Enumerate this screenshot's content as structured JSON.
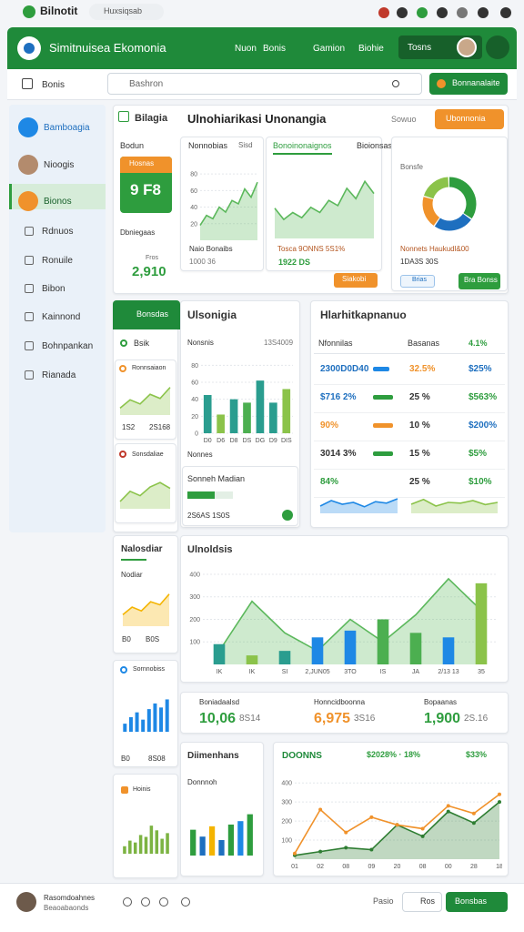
{
  "status_bar": {
    "app": "Bilnotit",
    "tab": "Huxsiqsab"
  },
  "header": {
    "title": "Simitnuisea Ekomonia",
    "nav": [
      "Nuon",
      "Bonis",
      "Gamion",
      "Biohie"
    ],
    "button": "Tosns"
  },
  "toolbar": {
    "home": "Bonis",
    "search": "Bashron",
    "action": "Bonnanalaite"
  },
  "sidebar": [
    "Bamboagia",
    "Nioogis",
    "Bionos",
    "Rdnuos",
    "Ronuile",
    "Bibon",
    "Kainnond",
    "Bohnpankan",
    "Rianada"
  ],
  "overview": {
    "tab": "Bilagia",
    "title": "Ulnohiarikasi Unonangia",
    "filter": "Sowuo",
    "button": "Ubonnonia",
    "kpi": {
      "label": "Bodun",
      "badge": "Hosnas",
      "big": "9 F8",
      "caption": "Dbniegaas",
      "note": "Fros",
      "value": "2,910"
    },
    "card1": {
      "title": "Nonnobias",
      "tag": "Sisd",
      "legend": "Naio Bonaibs",
      "foot": "1000 36"
    },
    "card2": {
      "tab": "Bonoinonaignos",
      "tab2": "Bioionsas",
      "legend": "Tosca 9ONNS 5S1%",
      "foot": "1922 DS",
      "button": "Siakobi"
    },
    "card3": {
      "label": "Bonsfe",
      "legend": "Nonnets Haukudl&00",
      "foot": "1DA3S 30S",
      "tag": "Brias",
      "button": "Bra Bonss"
    }
  },
  "side_panel": {
    "header": "Bonsdas",
    "item": "Bsik",
    "card1": {
      "title": "Ronnsaiaon",
      "left": "1S2",
      "right": "2S168"
    },
    "card2": {
      "title": "Sonsdaliae"
    }
  },
  "breakdown": {
    "title": "Ulsonigia",
    "label": "Nonsnis",
    "value": "13S4009",
    "foot": "Nonnes",
    "sub": "Sonneh Madian",
    "progress": 60,
    "sub_foot": "2S6AS 1S0S"
  },
  "table": {
    "title": "Hlarhitkapnanuo",
    "columns": [
      "Nfonnilas",
      "Basanas",
      "4.1%"
    ],
    "rows": [
      {
        "name": "2300D0D40",
        "color": "#1e6fbf",
        "bar": 45,
        "bar_color": "#1e88e5",
        "change": "32.5%",
        "change_color": "#f0922b",
        "share": "$25%",
        "share_color": "#1e6fbf"
      },
      {
        "name": "$716 2%",
        "color": "#1e6fbf",
        "bar": 55,
        "bar_color": "#2e9d3e",
        "change": "25 %",
        "change_color": "#333333",
        "share": "$563%",
        "share_color": "#2e9d3e"
      },
      {
        "name": "90%",
        "color": "#f0922b",
        "bar": 55,
        "bar_color": "#f0922b",
        "change": "10 %",
        "change_color": "#333333",
        "share": "$200%",
        "share_color": "#1e6fbf"
      },
      {
        "name": "3014 3%",
        "color": "#333333",
        "bar": 55,
        "bar_color": "#2e9d3e",
        "change": "15 %",
        "change_color": "#333333",
        "share": "$5%",
        "share_color": "#2e9d3e"
      },
      {
        "name": "84%",
        "color": "#2e9d3e",
        "bar": 0,
        "bar_color": "#2e9d3e",
        "change": "25 %",
        "change_color": "#333333",
        "share": "$10%",
        "share_color": "#2e9d3e"
      }
    ]
  },
  "trend": {
    "title": "Nalosdiar",
    "label": "Nodiar",
    "left": "B0",
    "right": "B0S"
  },
  "analysis": {
    "title": "Ulnoldsis"
  },
  "kpis": [
    {
      "label": "Boniadaalsd",
      "value": "10,06",
      "delta": "8S14",
      "color": "#2e9d3e"
    },
    {
      "label": "Honncidboonna",
      "value": "6,975",
      "delta": "3S16",
      "color": "#f0922b"
    },
    {
      "label": "Bopaanas",
      "value": "1,900",
      "delta": "2S.16",
      "color": "#2e9d3e"
    }
  ],
  "left_cards": {
    "card1": {
      "title": "Sornnobiss",
      "left": "B0",
      "right": "8S08"
    },
    "card2": {
      "title": "Hoinis"
    }
  },
  "dimensions": {
    "title": "Diimenhans",
    "label": "Donnnoh"
  },
  "summary": {
    "title": "DOONNS",
    "change": "$2028% · 18%",
    "share": "$33%"
  },
  "footer": {
    "name": "Rasomdoahnes",
    "role": "Beaoabaonds",
    "link": "Pasio",
    "secondary": "Ros",
    "primary": "Bonsbas"
  },
  "charts": {
    "kpi_area": {
      "type": "area",
      "color": "#5cb85c",
      "values": [
        18,
        30,
        26,
        40,
        34,
        48,
        44,
        62,
        52,
        70
      ],
      "ylim": [
        0,
        90
      ],
      "yticks": [
        20,
        40,
        60,
        80
      ]
    },
    "mid_area": {
      "type": "area",
      "color": "#5cb85c",
      "values": [
        35,
        22,
        30,
        24,
        36,
        30,
        44,
        38,
        58,
        46,
        66,
        52
      ],
      "ylim": [
        0,
        80
      ]
    },
    "donut": {
      "type": "donut",
      "values": [
        35,
        25,
        20,
        20
      ],
      "colors": [
        "#2e9d3e",
        "#1e6fbf",
        "#f0922b",
        "#8bc34a"
      ]
    },
    "side_line1": {
      "type": "area",
      "color": "#8bc34a",
      "values": [
        10,
        22,
        16,
        30,
        24,
        40
      ],
      "ylim": [
        0,
        50
      ]
    },
    "side_area2": {
      "type": "area",
      "color": "#8bc34a",
      "values": [
        10,
        24,
        18,
        30,
        36,
        28
      ],
      "ylim": [
        0,
        50
      ]
    },
    "breakdown_bars": {
      "type": "bar",
      "values": [
        45,
        22,
        40,
        36,
        62,
        36,
        52
      ],
      "colors": [
        "#2a9d8f",
        "#8bc34a",
        "#2a9d8f",
        "#4caf50",
        "#2a9d8f",
        "#2a9d8f",
        "#8bc34a"
      ],
      "ylim": [
        0,
        90
      ],
      "yticks": [
        0,
        20,
        40,
        60,
        80
      ],
      "categories": [
        "D0",
        "D6",
        "D8",
        "DS",
        "DG",
        "D9",
        "DIS"
      ]
    },
    "wave1": {
      "type": "area",
      "color": "#1e88e5",
      "values": [
        20,
        35,
        25,
        30,
        18,
        32,
        28,
        40
      ],
      "ylim": [
        0,
        50
      ]
    },
    "wave2": {
      "type": "area",
      "color": "#8bc34a",
      "values": [
        25,
        38,
        20,
        30,
        28,
        35,
        24,
        30
      ],
      "ylim": [
        0,
        50
      ]
    },
    "trend_area": {
      "type": "area",
      "color": "#f4b400",
      "values": [
        15,
        25,
        20,
        32,
        28,
        42
      ],
      "ylim": [
        0,
        50
      ]
    },
    "analysis_combo": {
      "type": "combo",
      "series": [
        {
          "color": "#5cb85c",
          "values": [
            60,
            280,
            140,
            60,
            200,
            100,
            220,
            380,
            240
          ]
        },
        {
          "colors": [
            "#2a9d8f",
            "#8bc34a",
            "#2a9d8f",
            "#1e88e5",
            "#1e88e5",
            "#4caf50",
            "#4caf50",
            "#1e88e5",
            "#8bc34a"
          ],
          "values": [
            90,
            40,
            60,
            120,
            150,
            200,
            140,
            120,
            360
          ]
        }
      ],
      "ylim": [
        0,
        420
      ],
      "yticks": [
        100,
        200,
        300,
        400
      ],
      "categories": [
        "IK",
        "IK",
        "SI",
        "2,JUN05",
        "3TO",
        "IS",
        "JA",
        "2/13 13",
        "35"
      ]
    },
    "blue_bars": {
      "type": "bar",
      "color": "#1e88e5",
      "values": [
        10,
        18,
        24,
        15,
        28,
        35,
        30,
        40
      ],
      "ylim": [
        0,
        45
      ]
    },
    "green_bars": {
      "type": "bar",
      "color": "#7cb342",
      "values": [
        8,
        14,
        12,
        20,
        18,
        30,
        25,
        16,
        22
      ],
      "ylim": [
        0,
        35
      ]
    },
    "dim_bars": {
      "type": "bar",
      "colors": [
        "#2e9d3e",
        "#1e6fbf",
        "#f4b400",
        "#1e6fbf",
        "#2e9d3e",
        "#1e88e5",
        "#2e9d3e"
      ],
      "values": [
        30,
        22,
        34,
        18,
        36,
        40,
        48
      ],
      "ylim": [
        0,
        55
      ]
    },
    "summary_line": {
      "type": "line",
      "series": [
        {
          "color": "#2e7d32",
          "values": [
            20,
            40,
            60,
            50,
            180,
            120,
            250,
            190,
            300
          ]
        },
        {
          "color": "#f0922b",
          "values": [
            30,
            260,
            140,
            220,
            180,
            160,
            280,
            240,
            340
          ]
        }
      ],
      "ylim": [
        0,
        420
      ],
      "yticks": [
        100,
        200,
        300,
        400
      ],
      "categories": [
        "01",
        "02",
        "08",
        "09",
        "20",
        "08",
        "00",
        "28",
        "18"
      ]
    }
  }
}
